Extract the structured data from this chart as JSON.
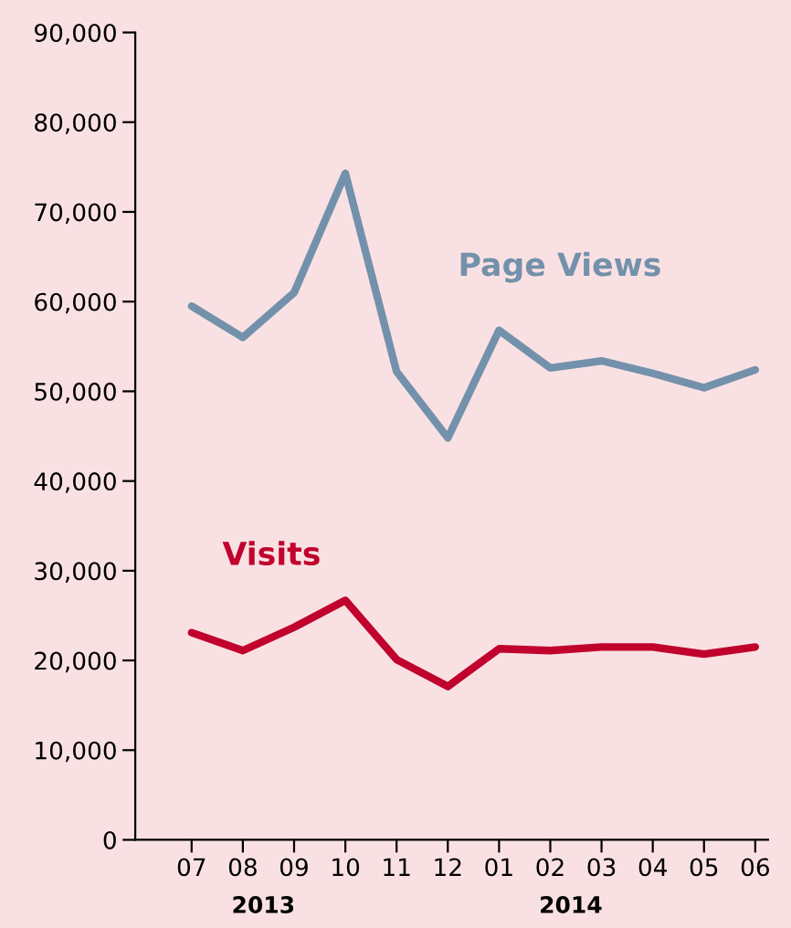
{
  "chart_data": {
    "type": "line",
    "categories": [
      "07",
      "08",
      "09",
      "10",
      "11",
      "12",
      "01",
      "02",
      "03",
      "04",
      "05",
      "06"
    ],
    "series": [
      {
        "name": "Page Views",
        "color": "#7391ab",
        "values": [
          59500,
          56000,
          61000,
          74300,
          52200,
          44800,
          56800,
          52600,
          53400,
          52000,
          50400,
          52400
        ]
      },
      {
        "name": "Visits",
        "color": "#c0022d",
        "values": [
          23100,
          21100,
          23700,
          26700,
          20100,
          17100,
          21300,
          21100,
          21500,
          21500,
          20700,
          21500
        ]
      }
    ],
    "ylim": [
      0,
      90000
    ],
    "yticks": [
      {
        "value": 0,
        "label": "0"
      },
      {
        "value": 10000,
        "label": "10,000"
      },
      {
        "value": 20000,
        "label": "20,000"
      },
      {
        "value": 30000,
        "label": "30,000"
      },
      {
        "value": 40000,
        "label": "40,000"
      },
      {
        "value": 50000,
        "label": "50,000"
      },
      {
        "value": 60000,
        "label": "60,000"
      },
      {
        "value": 70000,
        "label": "70,000"
      },
      {
        "value": 80000,
        "label": "80,000"
      },
      {
        "value": 90000,
        "label": "90,000"
      }
    ],
    "grid": false,
    "legend": false,
    "marker": "none",
    "line_style": "solid",
    "annotations": [
      "2013",
      "2014"
    ]
  }
}
